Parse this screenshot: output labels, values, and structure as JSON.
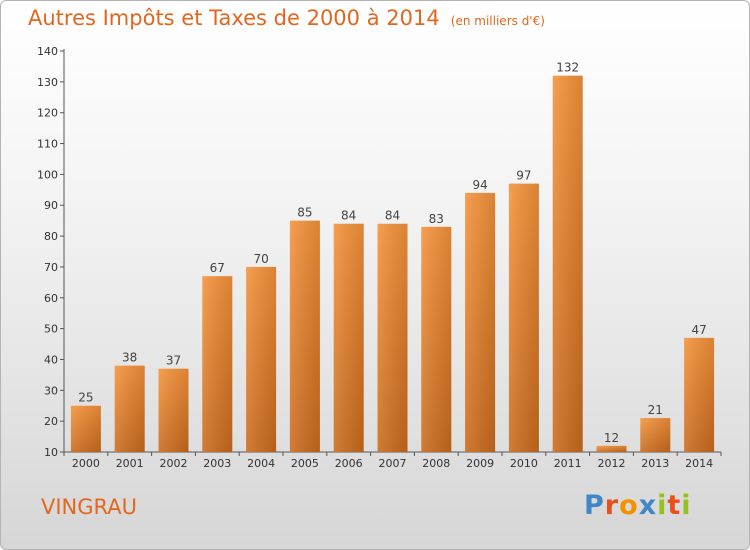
{
  "chart_data": {
    "type": "bar",
    "title": "Autres Impôts et Taxes de 2000 à 2014",
    "unit": "(en milliers d'€)",
    "categories": [
      "2000",
      "2001",
      "2002",
      "2003",
      "2004",
      "2005",
      "2006",
      "2007",
      "2008",
      "2009",
      "2010",
      "2011",
      "2012",
      "2013",
      "2014"
    ],
    "values": [
      25,
      38,
      37,
      67,
      70,
      85,
      84,
      84,
      83,
      94,
      97,
      132,
      12,
      21,
      47
    ],
    "ylim": [
      10,
      140
    ],
    "yticks": [
      10,
      20,
      30,
      40,
      50,
      60,
      70,
      80,
      90,
      100,
      110,
      120,
      130,
      140
    ],
    "grid": false,
    "bar_color": "#f4923a"
  },
  "commune": "VINGRAU",
  "logo": {
    "text": "Proxiti",
    "letters": [
      {
        "ch": "P",
        "color": "#3f87c7"
      },
      {
        "ch": "r",
        "color": "#e94e1b"
      },
      {
        "ch": "o",
        "color": "#f39200"
      },
      {
        "ch": "x",
        "color": "#3f87c7"
      },
      {
        "ch": "i",
        "color": "#95c11f"
      },
      {
        "ch": "t",
        "color": "#e94e1b"
      },
      {
        "ch": "i",
        "color": "#95c11f"
      }
    ]
  }
}
